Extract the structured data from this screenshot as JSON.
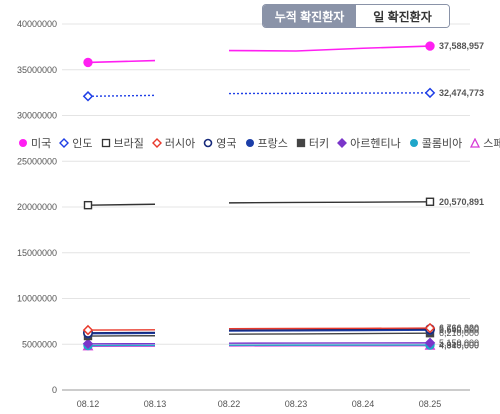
{
  "tabs": [
    {
      "label": "누적 확진환자",
      "active": true
    },
    {
      "label": "일 확진환자",
      "active": false
    }
  ],
  "chart_data": {
    "type": "line",
    "categories": [
      "08.12",
      "08.13",
      "08.22",
      "08.23",
      "08.24",
      "08.25"
    ],
    "ylim": [
      0,
      40000000
    ],
    "yticks": [
      "0",
      "5000000",
      "10000000",
      "15000000",
      "20000000",
      "25000000",
      "30000000",
      "35000000",
      "40000000"
    ],
    "grid": true,
    "legend_position": "middle",
    "series": [
      {
        "name": "미국",
        "color": "#ff1ff2",
        "marker": "circle-filled",
        "dash": "",
        "width": 1.6,
        "values": [
          35800000,
          36000000,
          37100000,
          37050000,
          37350000,
          37588957
        ],
        "label": "37,588,957"
      },
      {
        "name": "인도",
        "color": "#1f3fe6",
        "marker": "diamond-open",
        "dash": "2,2",
        "width": 1.4,
        "values": [
          32100000,
          32200000,
          32400000,
          32420000,
          32450000,
          32474773
        ],
        "label": "32,474,773"
      },
      {
        "name": "브라질",
        "color": "#333333",
        "marker": "square-open",
        "dash": "",
        "width": 1.4,
        "values": [
          20200000,
          20300000,
          20450000,
          20500000,
          20530000,
          20570891
        ],
        "label": "20,570,891"
      },
      {
        "name": "러시아",
        "color": "#e8392b",
        "marker": "diamond-open",
        "dash": "",
        "width": 1.4,
        "values": [
          6550000,
          6580000,
          6700000,
          6720000,
          6740000,
          6766320
        ],
        "label": "6,766,320"
      },
      {
        "name": "영국",
        "color": "#16297a",
        "marker": "circle-open",
        "dash": "",
        "width": 1.4,
        "values": [
          6250000,
          6290000,
          6540000,
          6580000,
          6620000,
          6650000
        ],
        "label": "6,650,000"
      },
      {
        "name": "프랑스",
        "color": "#1c3ea8",
        "marker": "circle-filled",
        "dash": "",
        "width": 1.4,
        "values": [
          6150000,
          6190000,
          6440000,
          6470000,
          6500000,
          6540000
        ],
        "label": "6,540,000"
      },
      {
        "name": "터키",
        "color": "#444444",
        "marker": "square-filled",
        "dash": "",
        "width": 1.4,
        "values": [
          5900000,
          5930000,
          6100000,
          6130000,
          6170000,
          6210000
        ],
        "label": "6,210,000"
      },
      {
        "name": "아르헨티나",
        "color": "#7a35c9",
        "marker": "diamond-filled",
        "dash": "",
        "width": 1.4,
        "values": [
          5050000,
          5060000,
          5120000,
          5130000,
          5140000,
          5150000
        ],
        "label": "5,150,000"
      },
      {
        "name": "콜롬비아",
        "color": "#1fa6c9",
        "marker": "circle-filled",
        "dash": "",
        "width": 1.4,
        "values": [
          4860000,
          4870000,
          4900000,
          4905000,
          4910000,
          4915000
        ],
        "label": "4,915,000"
      },
      {
        "name": "스페인",
        "color": "#d63bd6",
        "marker": "triangle-open",
        "dash": "",
        "width": 1.4,
        "values": [
          4780000,
          4790000,
          4820000,
          4830000,
          4835000,
          4840000
        ],
        "label": "4,840,000"
      }
    ]
  }
}
